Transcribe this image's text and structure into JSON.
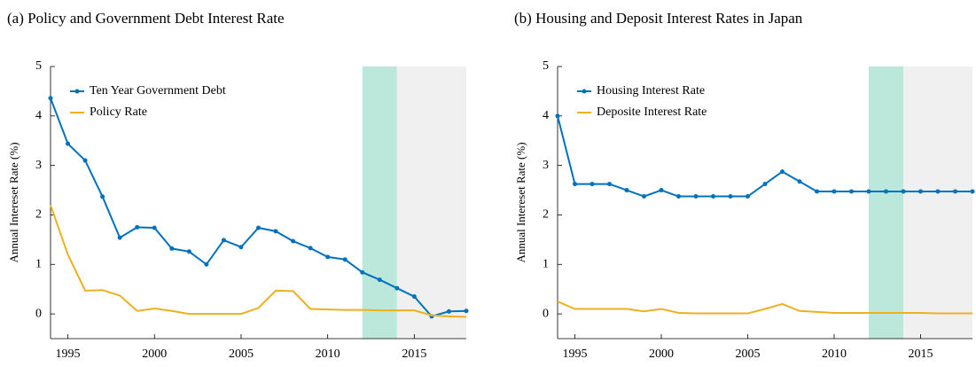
{
  "chart_data": [
    {
      "type": "line",
      "title": "(a) Policy and Government Debt Interest Rate",
      "y_label": "Annual Intereset Rate (%)",
      "x": [
        1994,
        1995,
        1996,
        1997,
        1998,
        1999,
        2000,
        2001,
        2002,
        2003,
        2004,
        2005,
        2006,
        2007,
        2008,
        2009,
        2010,
        2011,
        2012,
        2013,
        2014,
        2015,
        2016,
        2017,
        2018
      ],
      "series": [
        {
          "name": "Ten Year Government Debt",
          "color": "#0072bd",
          "markers": true,
          "values": [
            4.36,
            3.44,
            3.1,
            2.37,
            1.54,
            1.75,
            1.74,
            1.32,
            1.26,
            1.0,
            1.49,
            1.35,
            1.74,
            1.67,
            1.47,
            1.33,
            1.15,
            1.1,
            0.84,
            0.69,
            0.52,
            0.35,
            -0.05,
            0.05,
            0.06
          ]
        },
        {
          "name": "Policy Rate",
          "color": "#edb120",
          "markers": false,
          "values": [
            2.2,
            1.2,
            0.47,
            0.48,
            0.37,
            0.06,
            0.11,
            0.06,
            0.0,
            0.0,
            0.0,
            0.0,
            0.12,
            0.47,
            0.46,
            0.1,
            0.09,
            0.08,
            0.08,
            0.07,
            0.07,
            0.07,
            -0.03,
            -0.05,
            -0.06
          ]
        }
      ],
      "bands": [
        {
          "range": [
            2012,
            2014
          ],
          "color": "#bce8db"
        },
        {
          "range": [
            2014,
            2018
          ],
          "color": "#f0f0f0"
        }
      ],
      "xlim": [
        1994,
        2018
      ],
      "xticks": [
        1995,
        2000,
        2005,
        2010,
        2015
      ],
      "ylim": [
        -0.5,
        5
      ],
      "yticks": [
        0,
        1,
        2,
        3,
        4,
        5
      ],
      "legend": "upper left"
    },
    {
      "type": "line",
      "title": "(b) Housing and Deposit Interest Rates in Japan",
      "y_label": "Annual Intereset Rate (%)",
      "x": [
        1994,
        1995,
        1996,
        1997,
        1998,
        1999,
        2000,
        2001,
        2002,
        2003,
        2004,
        2005,
        2006,
        2007,
        2008,
        2009,
        2010,
        2011,
        2012,
        2013,
        2014,
        2015,
        2016,
        2017,
        2018
      ],
      "series": [
        {
          "name": "Housing Interest Rate",
          "color": "#0072bd",
          "markers": true,
          "values": [
            4.0,
            2.625,
            2.625,
            2.625,
            2.5,
            2.375,
            2.5,
            2.375,
            2.375,
            2.375,
            2.375,
            2.375,
            2.625,
            2.875,
            2.675,
            2.475,
            2.475,
            2.475,
            2.475,
            2.475,
            2.475,
            2.475,
            2.475,
            2.475,
            2.475
          ]
        },
        {
          "name": "Deposite Interest Rate",
          "color": "#edb120",
          "markers": false,
          "values": [
            0.25,
            0.1,
            0.1,
            0.1,
            0.1,
            0.05,
            0.1,
            0.02,
            0.01,
            0.01,
            0.01,
            0.01,
            0.1,
            0.2,
            0.06,
            0.04,
            0.02,
            0.02,
            0.02,
            0.02,
            0.02,
            0.02,
            0.01,
            0.01,
            0.01
          ]
        }
      ],
      "bands": [
        {
          "range": [
            2012,
            2014
          ],
          "color": "#bce8db"
        },
        {
          "range": [
            2014,
            2018
          ],
          "color": "#f0f0f0"
        }
      ],
      "xlim": [
        1994,
        2018
      ],
      "xticks": [
        1995,
        2000,
        2005,
        2010,
        2015
      ],
      "ylim": [
        -0.5,
        5
      ],
      "yticks": [
        0,
        1,
        2,
        3,
        4,
        5
      ],
      "legend": "upper left"
    }
  ]
}
